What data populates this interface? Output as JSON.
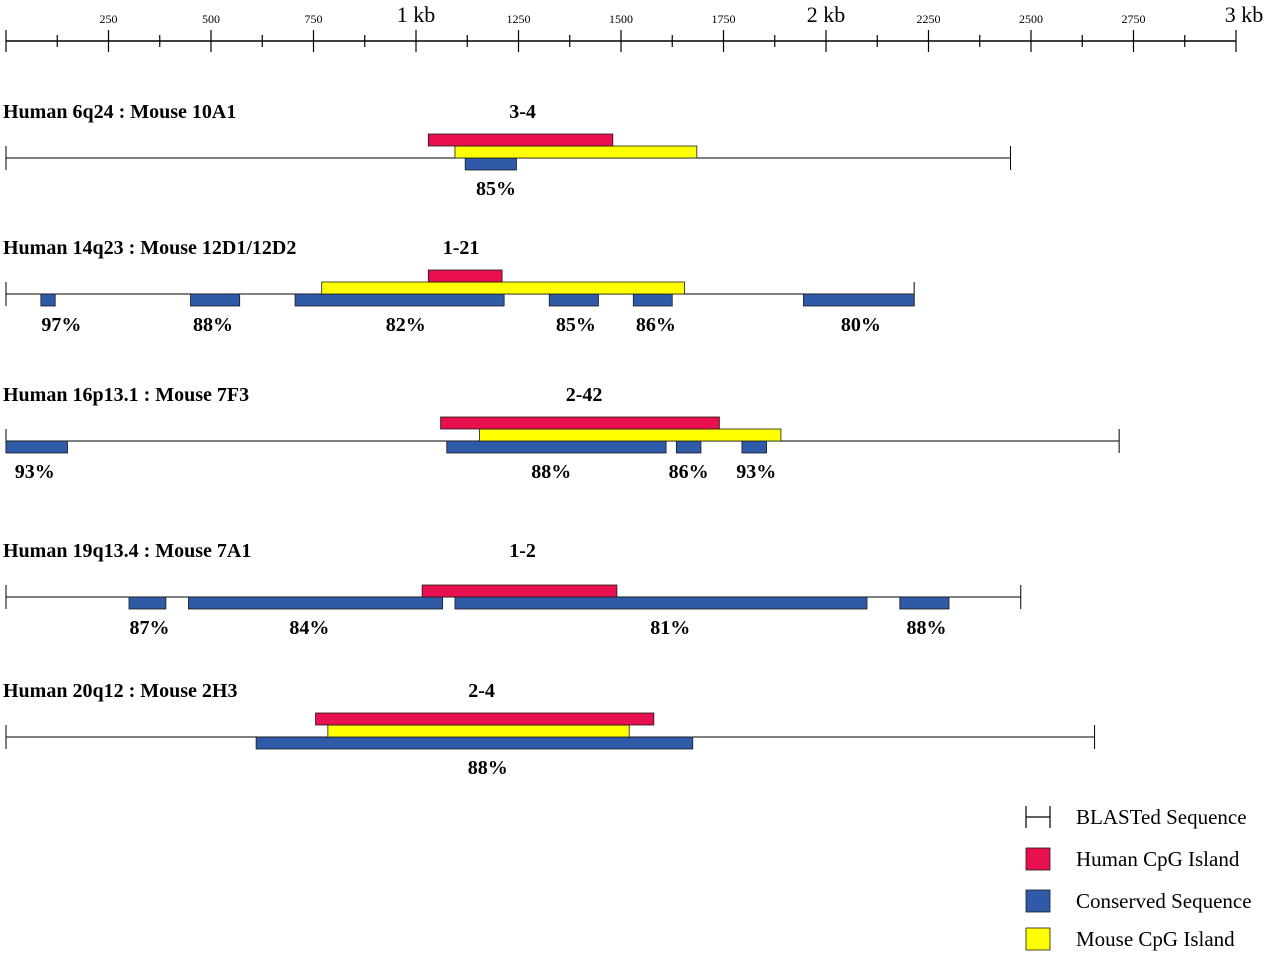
{
  "axis": {
    "unit_kb_labels": [
      {
        "pos": 1000,
        "text": "1 kb"
      },
      {
        "pos": 2000,
        "text": "2 kb"
      },
      {
        "pos": 3000,
        "text": "3 kb"
      }
    ],
    "tick_labels": [
      {
        "pos": 250,
        "text": "250"
      },
      {
        "pos": 500,
        "text": "500"
      },
      {
        "pos": 750,
        "text": "750"
      },
      {
        "pos": 1250,
        "text": "1250"
      },
      {
        "pos": 1500,
        "text": "1500"
      },
      {
        "pos": 1750,
        "text": "1750"
      },
      {
        "pos": 2250,
        "text": "2250"
      },
      {
        "pos": 2500,
        "text": "2500"
      },
      {
        "pos": 2750,
        "text": "2750"
      }
    ],
    "minor_tick_step": 125,
    "range_bp": [
      0,
      3000
    ]
  },
  "rows": [
    {
      "title": "Human 6q24 : Mouse 10A1",
      "cluster_label": "3-4",
      "cluster_label_pos": 1260,
      "sequence": [
        0,
        2450
      ],
      "human_cpg": [
        [
          1030,
          1480
        ]
      ],
      "mouse_cpg": [
        [
          1095,
          1685
        ]
      ],
      "conserved": [
        {
          "range": [
            1120,
            1245
          ],
          "percent": "85%",
          "label_pos": 1195
        }
      ]
    },
    {
      "title": "Human 14q23 : Mouse 12D1/12D2",
      "cluster_label": "1-21",
      "cluster_label_pos": 1110,
      "sequence": [
        0,
        2215
      ],
      "human_cpg": [
        [
          1030,
          1210
        ]
      ],
      "mouse_cpg": [
        [
          770,
          1655
        ]
      ],
      "conserved": [
        {
          "range": [
            85,
            120
          ],
          "percent": "97%",
          "label_pos": 135
        },
        {
          "range": [
            450,
            570
          ],
          "percent": "88%",
          "label_pos": 505
        },
        {
          "range": [
            705,
            1215
          ],
          "percent": "82%",
          "label_pos": 975
        },
        {
          "range": [
            1325,
            1445
          ],
          "percent": "85%",
          "label_pos": 1390
        },
        {
          "range": [
            1530,
            1625
          ],
          "percent": "86%",
          "label_pos": 1585
        },
        {
          "range": [
            1945,
            2215
          ],
          "percent": "80%",
          "label_pos": 2085
        }
      ]
    },
    {
      "title": "Human 16p13.1 : Mouse 7F3",
      "cluster_label": "2-42",
      "cluster_label_pos": 1410,
      "sequence": [
        0,
        2715
      ],
      "human_cpg": [
        [
          1060,
          1740
        ]
      ],
      "mouse_cpg": [
        [
          1155,
          1890
        ]
      ],
      "conserved": [
        {
          "range": [
            0,
            150
          ],
          "percent": "93%",
          "label_pos": 70
        },
        {
          "range": [
            1075,
            1610
          ],
          "percent": "88%",
          "label_pos": 1330
        },
        {
          "range": [
            1635,
            1695
          ],
          "percent": "86%",
          "label_pos": 1665
        },
        {
          "range": [
            1795,
            1855
          ],
          "percent": "93%",
          "label_pos": 1830
        }
      ]
    },
    {
      "title": "Human 19q13.4 : Mouse 7A1",
      "cluster_label": "1-2",
      "cluster_label_pos": 1260,
      "sequence": [
        0,
        2475
      ],
      "human_cpg": [
        [
          1015,
          1490
        ]
      ],
      "mouse_cpg": [],
      "conserved": [
        {
          "range": [
            300,
            390
          ],
          "percent": "87%",
          "label_pos": 350
        },
        {
          "range": [
            445,
            1065
          ],
          "percent": "84%",
          "label_pos": 740
        },
        {
          "range": [
            1095,
            2100
          ],
          "percent": "81%",
          "label_pos": 1620
        },
        {
          "range": [
            2180,
            2300
          ],
          "percent": "88%",
          "label_pos": 2245
        }
      ]
    },
    {
      "title": "Human 20q12 : Mouse 2H3",
      "cluster_label": "2-4",
      "cluster_label_pos": 1160,
      "sequence": [
        0,
        2655
      ],
      "human_cpg": [
        [
          755,
          1580
        ]
      ],
      "mouse_cpg": [
        [
          785,
          1520
        ]
      ],
      "conserved": [
        {
          "range": [
            610,
            1675
          ],
          "percent": "88%",
          "label_pos": 1175
        }
      ]
    }
  ],
  "legend": [
    {
      "kind": "sequence",
      "label": "BLASTed Sequence"
    },
    {
      "kind": "human_cpg",
      "label": "Human CpG Island"
    },
    {
      "kind": "conserved",
      "label": "Conserved Sequence"
    },
    {
      "kind": "mouse_cpg",
      "label": "Mouse CpG Island"
    }
  ],
  "colors": {
    "human_cpg": "#e8104e",
    "mouse_cpg": "#ffff00",
    "conserved": "#2f5aa8",
    "line": "#000000",
    "bar_outline": "#1a1a1a"
  }
}
